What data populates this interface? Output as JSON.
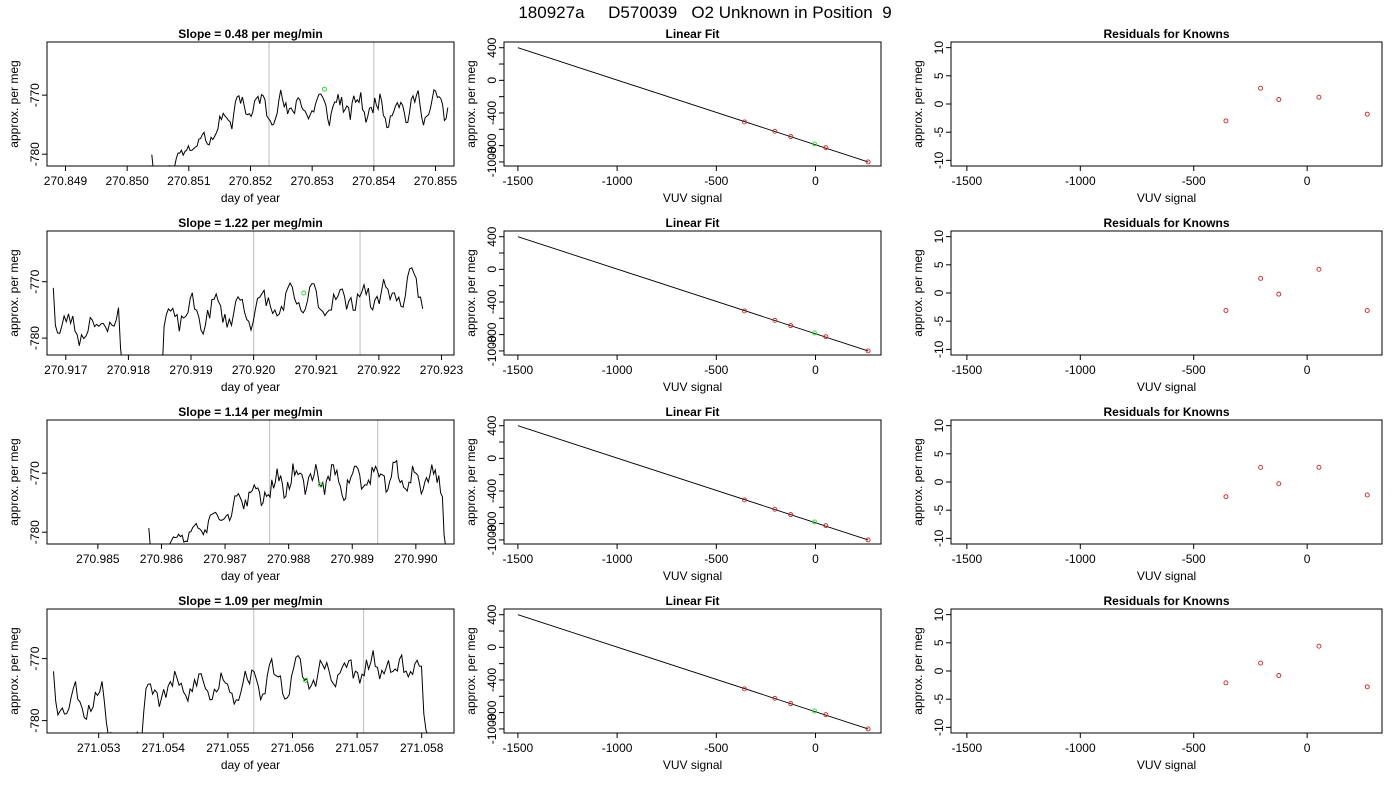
{
  "figure_title": "180927a     D570039   O2 Unknown in Position  9",
  "chart_data": [
    {
      "row": 1,
      "col": 1,
      "type": "line",
      "title": "Slope =  0.48  per meg/min",
      "xlabel": "day of year",
      "ylabel": "approx. per meg",
      "xlim": [
        270.8487,
        270.8553
      ],
      "ylim": [
        -782,
        -761
      ],
      "xticks": [
        "270.849",
        "270.850",
        "270.851",
        "270.852",
        "270.853",
        "270.854",
        "270.855"
      ],
      "xtick_values": [
        270.849,
        270.85,
        270.851,
        270.852,
        270.853,
        270.854,
        270.855
      ],
      "yticks": [
        "-780",
        "-770"
      ],
      "ytick_values": [
        -780,
        -770
      ],
      "vlines": [
        270.8523,
        270.854
      ],
      "marker": {
        "x": 270.8532,
        "y": -769,
        "color": "#22dd22"
      },
      "trace": {
        "x_start": 270.8504,
        "x_end": 270.8552,
        "seed": 11,
        "start_y": -784,
        "ramp_end": 0.3,
        "base": -772,
        "amp": 3.2
      }
    },
    {
      "row": 1,
      "col": 2,
      "type": "scatter",
      "title": "Linear Fit",
      "xlabel": "VUV signal",
      "ylabel": "approx. per meg",
      "xlim": [
        -1570,
        330
      ],
      "ylim": [
        -1050,
        470
      ],
      "xticks": [
        "-1500",
        "-1000",
        "-500",
        "0"
      ],
      "xtick_values": [
        -1500,
        -1000,
        -500,
        0
      ],
      "yticks": [
        "-1000",
        "-800",
        "-400",
        "0",
        "400"
      ],
      "ytick_values": [
        -1000,
        -800,
        -400,
        0,
        400
      ],
      "yminor": [
        -600,
        -200,
        200
      ],
      "fit_line": {
        "x": [
          -1500,
          265
        ],
        "y": [
          400,
          -1000
        ]
      },
      "points": [
        {
          "x": -358,
          "y": -510
        },
        {
          "x": -205,
          "y": -625
        },
        {
          "x": -125,
          "y": -690
        },
        {
          "x": 52,
          "y": -825
        },
        {
          "x": 265,
          "y": -1000
        }
      ],
      "point_color": "#cc2222",
      "marker": {
        "x": -5,
        "y": -780,
        "color": "#22dd22"
      }
    },
    {
      "row": 1,
      "col": 3,
      "type": "scatter",
      "title": "Residuals for Knowns",
      "xlabel": "VUV signal",
      "ylabel": "approx. per meg",
      "xlim": [
        -1570,
        330
      ],
      "ylim": [
        -11,
        11
      ],
      "xticks": [
        "-1500",
        "-1000",
        "-500",
        "0"
      ],
      "xtick_values": [
        -1500,
        -1000,
        -500,
        0
      ],
      "yticks": [
        "-10",
        "-5",
        "0",
        "5",
        "10"
      ],
      "ytick_values": [
        -10,
        -5,
        0,
        5,
        10
      ],
      "points": [
        {
          "x": -358,
          "y": -3.0
        },
        {
          "x": -205,
          "y": 2.8
        },
        {
          "x": -125,
          "y": 0.8
        },
        {
          "x": 52,
          "y": 1.2
        },
        {
          "x": 265,
          "y": -1.8
        }
      ],
      "point_color": "#cc2222"
    },
    {
      "row": 2,
      "col": 1,
      "type": "line",
      "title": "Slope =  1.22  per meg/min",
      "xlabel": "day of year",
      "ylabel": "approx. per meg",
      "xlim": [
        270.9167,
        270.9232
      ],
      "ylim": [
        -783,
        -761
      ],
      "xticks": [
        "270.917",
        "270.918",
        "270.919",
        "270.920",
        "270.921",
        "270.922",
        "270.923"
      ],
      "xtick_values": [
        270.917,
        270.918,
        270.919,
        270.92,
        270.921,
        270.922,
        270.923
      ],
      "yticks": [
        "-780",
        "-770"
      ],
      "ytick_values": [
        -780,
        -770
      ],
      "vlines": [
        270.92,
        270.9217
      ],
      "marker": {
        "x": 270.9208,
        "y": -772,
        "color": "#22dd22"
      },
      "trace": {
        "x_start": 270.9168,
        "x_end": 270.9227,
        "seed": 23,
        "start_y": -769,
        "ramp_end": 0.0,
        "base": -775,
        "amp": 3.5,
        "dip": [
          0.18,
          0.3,
          -786
        ],
        "drift": 7
      }
    },
    {
      "row": 2,
      "col": 2,
      "type": "scatter",
      "title": "Linear Fit",
      "xlabel": "VUV signal",
      "ylabel": "approx. per meg",
      "xlim": [
        -1570,
        330
      ],
      "ylim": [
        -1050,
        470
      ],
      "xticks": [
        "-1500",
        "-1000",
        "-500",
        "0"
      ],
      "xtick_values": [
        -1500,
        -1000,
        -500,
        0
      ],
      "yticks": [
        "-1000",
        "-800",
        "-400",
        "0",
        "400"
      ],
      "ytick_values": [
        -1000,
        -800,
        -400,
        0,
        400
      ],
      "yminor": [
        -600,
        -200,
        200
      ],
      "fit_line": {
        "x": [
          -1500,
          265
        ],
        "y": [
          400,
          -1000
        ]
      },
      "points": [
        {
          "x": -358,
          "y": -510
        },
        {
          "x": -205,
          "y": -625
        },
        {
          "x": -125,
          "y": -690
        },
        {
          "x": 52,
          "y": -825
        },
        {
          "x": 265,
          "y": -1000
        }
      ],
      "point_color": "#cc2222",
      "marker": {
        "x": -5,
        "y": -780,
        "color": "#22dd22"
      }
    },
    {
      "row": 2,
      "col": 3,
      "type": "scatter",
      "title": "Residuals for Knowns",
      "xlabel": "VUV signal",
      "ylabel": "approx. per meg",
      "xlim": [
        -1570,
        330
      ],
      "ylim": [
        -11,
        11
      ],
      "xticks": [
        "-1500",
        "-1000",
        "-500",
        "0"
      ],
      "xtick_values": [
        -1500,
        -1000,
        -500,
        0
      ],
      "yticks": [
        "-10",
        "-5",
        "0",
        "5",
        "10"
      ],
      "ytick_values": [
        -10,
        -5,
        0,
        5,
        10
      ],
      "points": [
        {
          "x": -358,
          "y": -3.1
        },
        {
          "x": -205,
          "y": 2.6
        },
        {
          "x": -125,
          "y": -0.2
        },
        {
          "x": 52,
          "y": 4.2
        },
        {
          "x": 265,
          "y": -3.1
        }
      ],
      "point_color": "#cc2222"
    },
    {
      "row": 3,
      "col": 1,
      "type": "line",
      "title": "Slope =  1.14  per meg/min",
      "xlabel": "day of year",
      "ylabel": "approx. per meg",
      "xlim": [
        270.9842,
        270.9906
      ],
      "ylim": [
        -782,
        -761
      ],
      "xticks": [
        "270.985",
        "270.986",
        "270.987",
        "270.988",
        "270.989",
        "270.990"
      ],
      "xtick_values": [
        270.985,
        270.986,
        270.987,
        270.988,
        270.989,
        270.99
      ],
      "yticks": [
        "-780",
        "-770"
      ],
      "ytick_values": [
        -780,
        -770
      ],
      "vlines": [
        270.9877,
        270.9894
      ],
      "marker": {
        "x": 270.9885,
        "y": -772,
        "color": "#22dd22"
      },
      "trace": {
        "x_start": 270.9858,
        "x_end": 270.9905,
        "seed": 37,
        "start_y": -784,
        "ramp_end": 0.45,
        "base": -771,
        "amp": 3.3,
        "tail": -784
      }
    },
    {
      "row": 3,
      "col": 2,
      "type": "scatter",
      "title": "Linear Fit",
      "xlabel": "VUV signal",
      "ylabel": "approx. per meg",
      "xlim": [
        -1570,
        330
      ],
      "ylim": [
        -1050,
        470
      ],
      "xticks": [
        "-1500",
        "-1000",
        "-500",
        "0"
      ],
      "xtick_values": [
        -1500,
        -1000,
        -500,
        0
      ],
      "yticks": [
        "-1000",
        "-800",
        "-400",
        "0",
        "400"
      ],
      "ytick_values": [
        -1000,
        -800,
        -400,
        0,
        400
      ],
      "yminor": [
        -600,
        -200,
        200
      ],
      "fit_line": {
        "x": [
          -1500,
          265
        ],
        "y": [
          400,
          -1000
        ]
      },
      "points": [
        {
          "x": -358,
          "y": -510
        },
        {
          "x": -205,
          "y": -625
        },
        {
          "x": -125,
          "y": -690
        },
        {
          "x": 52,
          "y": -825
        },
        {
          "x": 265,
          "y": -1000
        }
      ],
      "point_color": "#cc2222",
      "marker": {
        "x": -5,
        "y": -780,
        "color": "#22dd22"
      }
    },
    {
      "row": 3,
      "col": 3,
      "type": "scatter",
      "title": "Residuals for Knowns",
      "xlabel": "VUV signal",
      "ylabel": "approx. per meg",
      "xlim": [
        -1570,
        330
      ],
      "ylim": [
        -11,
        11
      ],
      "xticks": [
        "-1500",
        "-1000",
        "-500",
        "0"
      ],
      "xtick_values": [
        -1500,
        -1000,
        -500,
        0
      ],
      "yticks": [
        "-10",
        "-5",
        "0",
        "5",
        "10"
      ],
      "ytick_values": [
        -10,
        -5,
        0,
        5,
        10
      ],
      "points": [
        {
          "x": -358,
          "y": -2.6
        },
        {
          "x": -205,
          "y": 2.6
        },
        {
          "x": -125,
          "y": -0.3
        },
        {
          "x": 52,
          "y": 2.6
        },
        {
          "x": 265,
          "y": -2.3
        }
      ],
      "point_color": "#cc2222"
    },
    {
      "row": 4,
      "col": 1,
      "type": "line",
      "title": "Slope =  1.09  per meg/min",
      "xlabel": "day of year",
      "ylabel": "approx. per meg",
      "xlim": [
        271.0522,
        271.0585
      ],
      "ylim": [
        -782,
        -762
      ],
      "xticks": [
        "271.053",
        "271.054",
        "271.055",
        "271.056",
        "271.057",
        "271.058"
      ],
      "xtick_values": [
        271.053,
        271.054,
        271.055,
        271.056,
        271.057,
        271.058
      ],
      "yticks": [
        "-780",
        "-770"
      ],
      "ytick_values": [
        -780,
        -770
      ],
      "vlines": [
        271.0554,
        271.0571
      ],
      "marker": {
        "x": 271.0562,
        "y": -773.5,
        "color": "#22dd22"
      },
      "trace": {
        "x_start": 271.0523,
        "x_end": 271.0581,
        "seed": 53,
        "start_y": -771,
        "ramp_end": 0.0,
        "base": -774,
        "amp": 3.3,
        "dip": [
          0.14,
          0.24,
          -783
        ],
        "drift": 6,
        "tail": -783
      }
    },
    {
      "row": 4,
      "col": 2,
      "type": "scatter",
      "title": "Linear Fit",
      "xlabel": "VUV signal",
      "ylabel": "approx. per meg",
      "xlim": [
        -1570,
        330
      ],
      "ylim": [
        -1050,
        470
      ],
      "xticks": [
        "-1500",
        "-1000",
        "-500",
        "0"
      ],
      "xtick_values": [
        -1500,
        -1000,
        -500,
        0
      ],
      "yticks": [
        "-1000",
        "-800",
        "-400",
        "0",
        "400"
      ],
      "ytick_values": [
        -1000,
        -800,
        -400,
        0,
        400
      ],
      "yminor": [
        -600,
        -200,
        200
      ],
      "fit_line": {
        "x": [
          -1500,
          265
        ],
        "y": [
          400,
          -1000
        ]
      },
      "points": [
        {
          "x": -358,
          "y": -510
        },
        {
          "x": -205,
          "y": -625
        },
        {
          "x": -125,
          "y": -690
        },
        {
          "x": 52,
          "y": -825
        },
        {
          "x": 265,
          "y": -1000
        }
      ],
      "point_color": "#cc2222",
      "marker": {
        "x": -5,
        "y": -780,
        "color": "#22dd22"
      }
    },
    {
      "row": 4,
      "col": 3,
      "type": "scatter",
      "title": "Residuals for Knowns",
      "xlabel": "VUV signal",
      "ylabel": "approx. per meg",
      "xlim": [
        -1570,
        330
      ],
      "ylim": [
        -11,
        11
      ],
      "xticks": [
        "-1500",
        "-1000",
        "-500",
        "0"
      ],
      "xtick_values": [
        -1500,
        -1000,
        -500,
        0
      ],
      "yticks": [
        "-10",
        "-5",
        "0",
        "5",
        "10"
      ],
      "ytick_values": [
        -10,
        -5,
        0,
        5,
        10
      ],
      "points": [
        {
          "x": -358,
          "y": -2.1
        },
        {
          "x": -205,
          "y": 1.4
        },
        {
          "x": -125,
          "y": -0.8
        },
        {
          "x": 52,
          "y": 4.4
        },
        {
          "x": 265,
          "y": -2.8
        }
      ],
      "point_color": "#cc2222"
    }
  ]
}
